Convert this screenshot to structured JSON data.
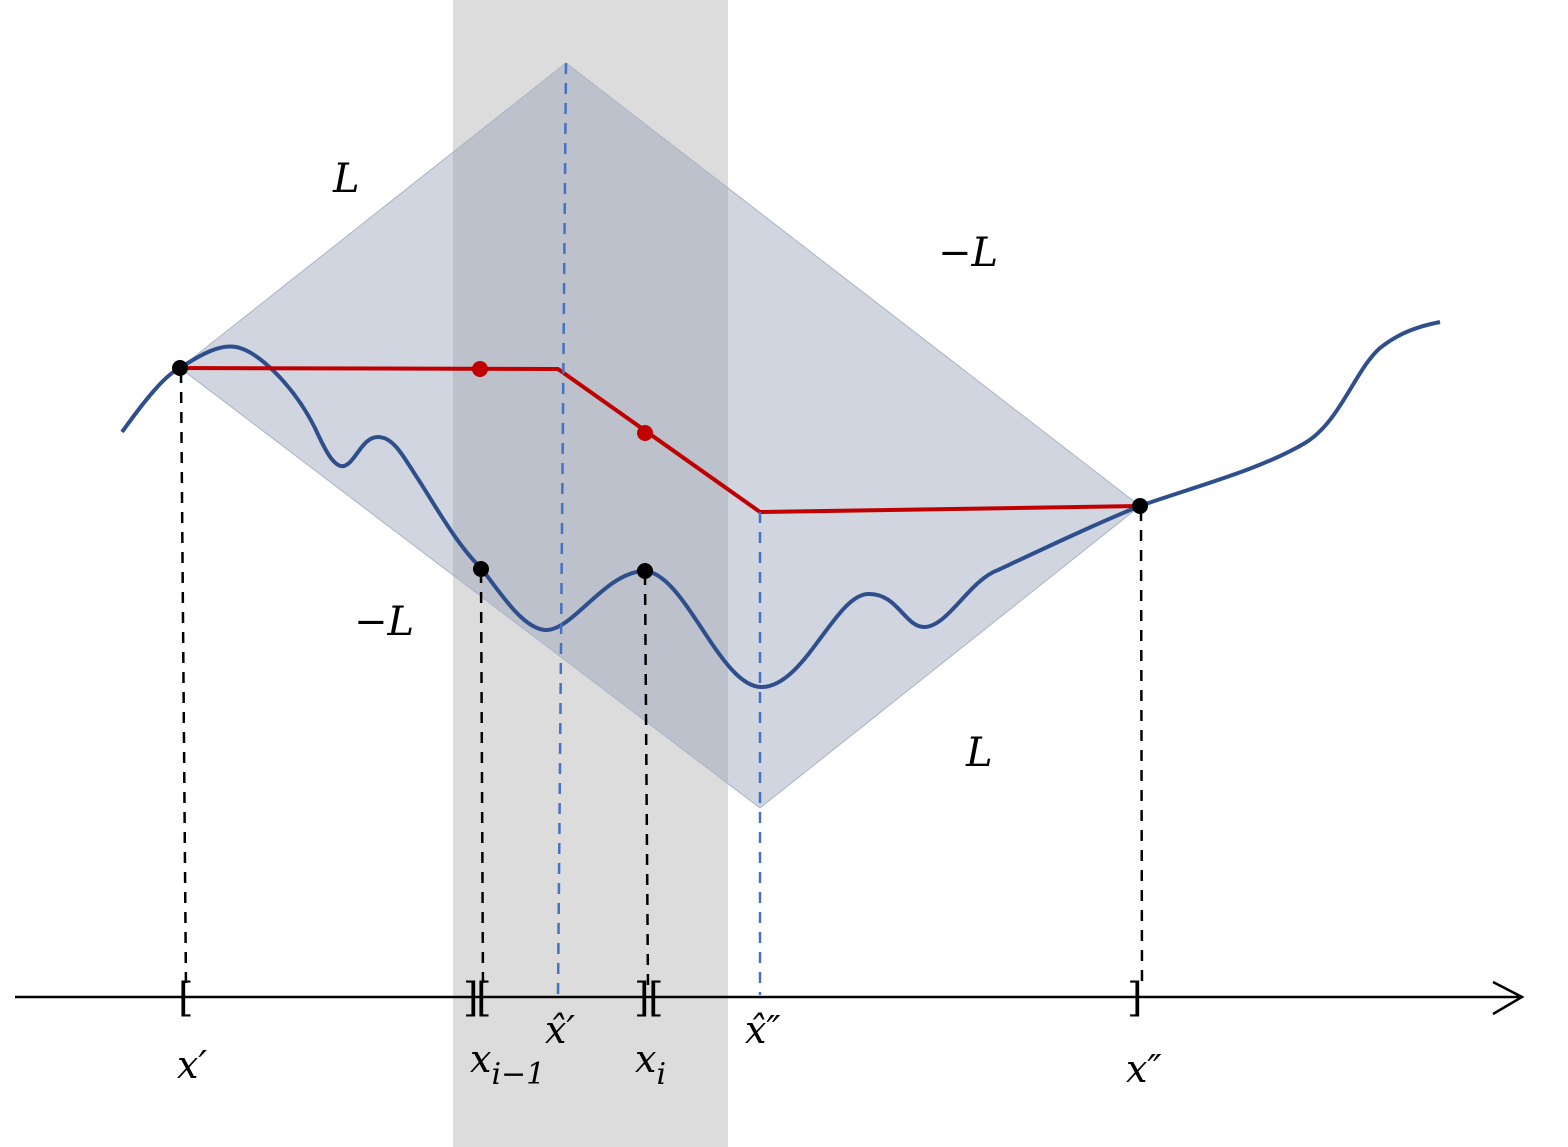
{
  "labels": {
    "slope_up_left": "L",
    "slope_down_right": "−L",
    "slope_down_left": "−L",
    "slope_up_right": "L"
  },
  "axis": {
    "x_prime": "x′",
    "x_i_minus_1": "x",
    "x_i_minus_1_sub": "i−1",
    "x_hat_prime": "x̂′",
    "x_i": "x",
    "x_i_sub": "i",
    "x_hat_double_prime": "x̂″",
    "x_double_prime": "x″"
  },
  "brackets": {
    "open": "[",
    "close": "]"
  },
  "colors": {
    "shaded_band": "#dcdcdc",
    "diamond_fill": "#8e9cb5",
    "curve": "#2f4f8c",
    "red_path": "#c00000",
    "blue_dashed": "#4472c4",
    "black": "#000000"
  }
}
